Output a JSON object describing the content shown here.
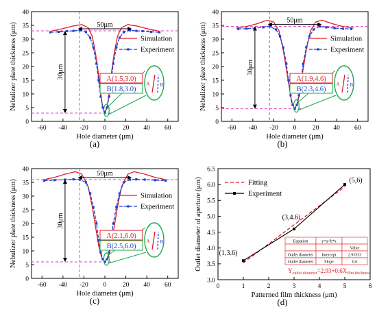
{
  "colors": {
    "simulation": "#e01b24",
    "experiment": "#1f3fd0",
    "guide": "#e040c8",
    "annot_box": "#e01b24",
    "annot_box_b": "#1aa84a",
    "ellipse": "#1aa84a",
    "fit": "#e01b24",
    "axis": "#000000"
  },
  "chart_data": [
    {
      "type": "line",
      "panel_label": "(a)",
      "xlabel": "Hole diameter (μm)",
      "ylabel": "Nebulizer plate thickness (μm)",
      "xlim": [
        -70,
        70
      ],
      "ylim": [
        0,
        40
      ],
      "xticks": [
        -60,
        -40,
        -20,
        0,
        20,
        40,
        60
      ],
      "yticks": [
        0,
        5,
        10,
        15,
        20,
        25,
        30,
        35,
        40
      ],
      "xtick_labels": [
        "-60",
        "-40",
        "-20",
        "0",
        "20",
        "40",
        "60"
      ],
      "ytick_labels": [
        "0",
        "5",
        "10",
        "15",
        "20",
        "25",
        "30",
        "35",
        "40"
      ],
      "legend": [
        "Simulation",
        "Experiment"
      ],
      "dim_top": "50μm",
      "dim_left": "30μm",
      "labels": {
        "a": "A(1.5,3.0)",
        "b": "B(1.8,3.0)",
        "a_short": "A",
        "b_short": "B"
      },
      "baseline": 3.0,
      "top": 33.0,
      "vline_x": -24,
      "series": [
        {
          "name": "Simulation",
          "x": [
            -50,
            -40,
            -30,
            -22,
            -16,
            -12,
            -9,
            -6,
            -4,
            -2,
            0,
            2,
            4,
            6,
            9,
            12,
            16,
            22,
            30,
            40,
            50
          ],
          "y": [
            33,
            33.8,
            34.8,
            35.3,
            34.2,
            31,
            25,
            17,
            10,
            5,
            3,
            5,
            10,
            17,
            25,
            31,
            34.2,
            35.3,
            34.8,
            33.8,
            33
          ]
        },
        {
          "name": "Experiment",
          "x": [
            -52,
            -44,
            -36,
            -30,
            -24,
            -18,
            -14,
            -11,
            -8,
            -6,
            -4,
            -2,
            0,
            2,
            4,
            6,
            8,
            11,
            14,
            18,
            24,
            30,
            36,
            44,
            52
          ],
          "y": [
            32.5,
            32.6,
            32.9,
            33.0,
            33.2,
            32.5,
            30.5,
            27,
            21,
            15,
            9,
            5,
            3.2,
            5,
            9,
            15,
            21,
            27,
            30.5,
            32.5,
            33.2,
            33.0,
            32.9,
            32.6,
            32.5
          ]
        }
      ]
    },
    {
      "type": "line",
      "panel_label": "(b)",
      "xlabel": "Hole diameter (μm)",
      "ylabel": "Nebulizer plate thickness (μm)",
      "xlim": [
        -70,
        70
      ],
      "ylim": [
        0,
        40
      ],
      "xticks": [
        -60,
        -40,
        -20,
        0,
        20,
        40,
        60
      ],
      "yticks": [
        0,
        5,
        10,
        15,
        20,
        25,
        30,
        35,
        40
      ],
      "xtick_labels": [
        "-60",
        "-40",
        "-20",
        "0",
        "20",
        "40",
        "60"
      ],
      "ytick_labels": [
        "0",
        "5",
        "10",
        "15",
        "20",
        "25",
        "30",
        "35",
        "40"
      ],
      "legend": [
        "Simulation",
        "Experiment"
      ],
      "dim_top": "50μm",
      "dim_left": "30μm",
      "labels": {
        "a": "A(1.9,4.6)",
        "b": "B(2.3,4.6)",
        "a_short": "A",
        "b_short": "B"
      },
      "baseline": 4.6,
      "top": 34.6,
      "vline_x": -24,
      "series": [
        {
          "name": "Simulation",
          "x": [
            -56,
            -46,
            -36,
            -26,
            -20,
            -15,
            -11,
            -8,
            -5,
            -3,
            0,
            3,
            5,
            8,
            11,
            15,
            20,
            26,
            36,
            46,
            56
          ],
          "y": [
            34,
            34.6,
            35.6,
            36.9,
            36.2,
            33,
            26,
            19,
            12,
            7,
            4.6,
            7,
            12,
            19,
            26,
            33,
            36.2,
            36.9,
            35.6,
            34.6,
            34
          ]
        },
        {
          "name": "Experiment",
          "x": [
            -54,
            -46,
            -38,
            -30,
            -24,
            -18,
            -14,
            -11,
            -8,
            -6,
            -4,
            -2,
            0,
            2,
            4,
            6,
            8,
            11,
            14,
            18,
            24,
            30,
            38,
            46,
            54
          ],
          "y": [
            33.7,
            33.8,
            34.0,
            34.3,
            34.6,
            33.5,
            31,
            27,
            21,
            15,
            9.5,
            6,
            4.6,
            6,
            9.5,
            15,
            21,
            27,
            31,
            33.5,
            34.6,
            34.3,
            34.0,
            33.8,
            33.7
          ]
        }
      ]
    },
    {
      "type": "line",
      "panel_label": "(c)",
      "xlabel": "Hole diameter (μm)",
      "ylabel": "Nebulizer plate thickness (μm)",
      "xlim": [
        -70,
        70
      ],
      "ylim": [
        0,
        40
      ],
      "xticks": [
        -60,
        -40,
        -20,
        0,
        20,
        40,
        60
      ],
      "yticks": [
        0,
        5,
        10,
        15,
        20,
        25,
        30,
        35,
        40
      ],
      "xtick_labels": [
        "-60",
        "-40",
        "-20",
        "0",
        "20",
        "40",
        "60"
      ],
      "ytick_labels": [
        "0",
        "5",
        "10",
        "15",
        "20",
        "25",
        "30",
        "35",
        "40"
      ],
      "legend": [
        "Simulation",
        "Experiment"
      ],
      "dim_top": "50μm",
      "dim_left": "30μm",
      "labels": {
        "a": "A(2.1,6.0)",
        "b": "B(2.5,6.0)",
        "a_short": "A",
        "b_short": "B"
      },
      "baseline": 6.0,
      "top": 36.0,
      "vline_x": -24,
      "series": [
        {
          "name": "Simulation",
          "x": [
            -58,
            -48,
            -38,
            -28,
            -22,
            -16,
            -12,
            -9,
            -6,
            -3,
            0,
            3,
            6,
            9,
            12,
            16,
            22,
            28,
            38,
            48,
            58
          ],
          "y": [
            36,
            36.8,
            38,
            38.9,
            38,
            33.5,
            26,
            19,
            12,
            7.5,
            6,
            7.5,
            12,
            19,
            26,
            33.5,
            38,
            38.9,
            38,
            36.8,
            36
          ]
        },
        {
          "name": "Experiment",
          "x": [
            -58,
            -48,
            -38,
            -30,
            -24,
            -18,
            -14,
            -11,
            -8,
            -6,
            -4,
            -2,
            0,
            2,
            4,
            6,
            8,
            11,
            14,
            18,
            24,
            30,
            38,
            48,
            58
          ],
          "y": [
            35.6,
            35.8,
            36.0,
            36.1,
            36.0,
            35,
            31,
            26,
            20,
            14,
            9.5,
            7,
            6,
            7,
            9.5,
            14,
            20,
            26,
            31,
            35,
            36.0,
            36.1,
            36.0,
            35.8,
            35.6
          ]
        }
      ]
    },
    {
      "type": "line",
      "panel_label": "(d)",
      "xlabel": "Patterned film thickness (μm)",
      "ylabel": "Outlet diameter of aperture (μm)",
      "xlim": [
        0,
        6
      ],
      "ylim": [
        3.0,
        6.5
      ],
      "xticks": [
        0,
        1,
        2,
        3,
        4,
        5,
        6
      ],
      "yticks": [
        3.0,
        3.5,
        4.0,
        4.5,
        5.0,
        5.5,
        6.0,
        6.5
      ],
      "xtick_labels": [
        "0",
        "1",
        "2",
        "3",
        "4",
        "5",
        "6"
      ],
      "ytick_labels": [
        "3.0",
        "3.5",
        "4.0",
        "4.5",
        "5.0",
        "5.5",
        "6.0",
        "6.5"
      ],
      "legend": [
        "Fitting",
        "Experiment"
      ],
      "point_labels": [
        "(1,3.6)",
        "(3,4.6)",
        "(5,6)"
      ],
      "fit_formula_main": "Y",
      "fit_formula_sub1": "outlet diameter",
      "fit_formula_mid": "=2.93+0.6X",
      "fit_formula_sub2": "film thickness",
      "table": {
        "header": [
          "Equation",
          "y=a+b*x",
          ""
        ],
        "row0": [
          "",
          "",
          "Value"
        ],
        "row1": [
          "Outlet diameter",
          "Intercept",
          "2.93333"
        ],
        "row2": [
          "Outlet diameter",
          "Slope",
          "0.6"
        ]
      },
      "series": [
        {
          "name": "Fitting",
          "x": [
            1,
            5
          ],
          "y": [
            3.53,
            5.93
          ]
        },
        {
          "name": "Experiment",
          "x": [
            1,
            3,
            5
          ],
          "y": [
            3.6,
            4.6,
            6.0
          ]
        }
      ]
    }
  ]
}
